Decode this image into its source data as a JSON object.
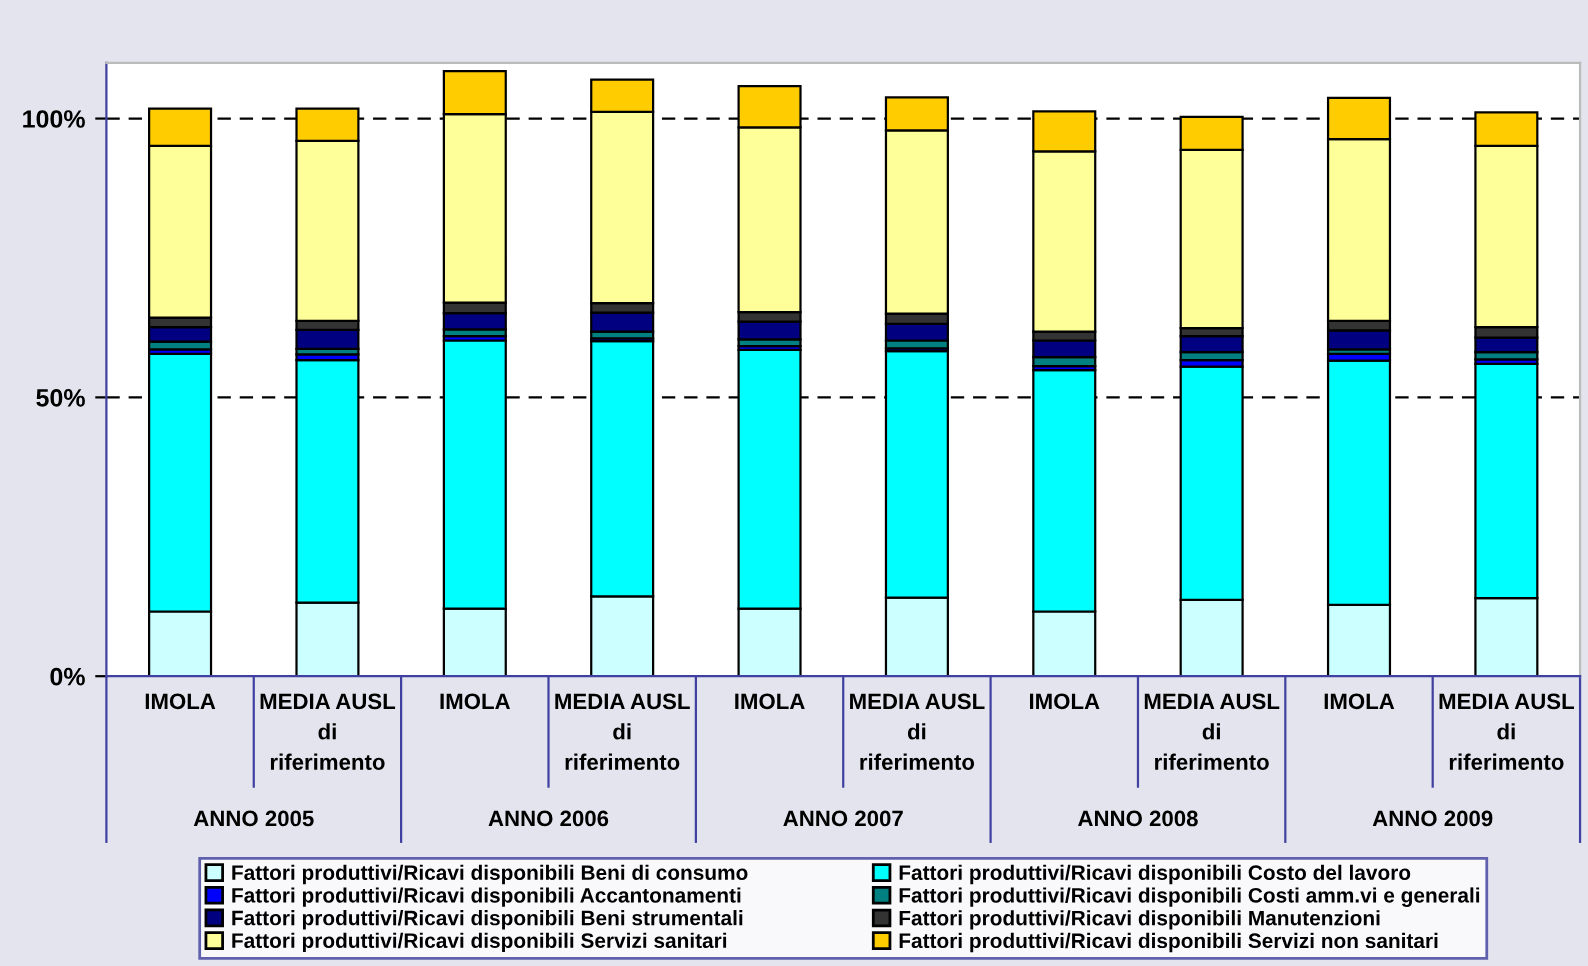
{
  "chart_data": {
    "type": "bar",
    "stacked": true,
    "categories": [
      "IMOLA",
      "MEDIA AUSL\ndi\nriferimento",
      "IMOLA",
      "MEDIA AUSL\ndi\nriferimento",
      "IMOLA",
      "MEDIA AUSL\ndi\nriferimento",
      "IMOLA",
      "MEDIA AUSL\ndi\nriferimento",
      "IMOLA",
      "MEDIA AUSL\ndi\nriferimento"
    ],
    "annotations": [
      "ANNO 2005",
      "ANNO 2006",
      "ANNO 2007",
      "ANNO 2008",
      "ANNO 2009"
    ],
    "series": [
      {
        "name": "Fattori produttivi/Ricavi disponibili Beni di consumo",
        "color": "#ccffff",
        "values": [
          11.6,
          13.2,
          12.1,
          14.3,
          12.1,
          14.1,
          11.6,
          13.7,
          12.8,
          14.0
        ]
      },
      {
        "name": "Fattori produttivi/Ricavi disponibili Costo del lavoro",
        "color": "#00ffff",
        "values": [
          46.2,
          43.5,
          48.1,
          45.8,
          46.4,
          44.2,
          43.3,
          41.8,
          43.8,
          42.0
        ]
      },
      {
        "name": "Fattori produttivi/Ricavi disponibili Accantonamenti",
        "color": "#0000ff",
        "values": [
          0.8,
          1.0,
          0.8,
          0.5,
          0.7,
          0.5,
          0.7,
          1.2,
          1.2,
          0.8
        ]
      },
      {
        "name": "Fattori produttivi/Ricavi disponibili Costi amm.vi e generali",
        "color": "#008080",
        "values": [
          1.4,
          1.0,
          1.2,
          1.2,
          1.2,
          1.4,
          1.6,
          1.4,
          0.8,
          1.3
        ]
      },
      {
        "name": "Fattori produttivi/Ricavi disponibili Beni strumentali",
        "color": "#000080",
        "values": [
          2.6,
          3.4,
          2.9,
          3.4,
          3.2,
          3.0,
          3.0,
          2.9,
          3.4,
          2.6
        ]
      },
      {
        "name": "Fattori produttivi/Ricavi disponibili Manutenzioni",
        "color": "#333333",
        "values": [
          1.7,
          1.6,
          1.9,
          1.7,
          1.7,
          1.8,
          1.6,
          1.4,
          1.7,
          1.9
        ]
      },
      {
        "name": "Fattori produttivi/Ricavi disponibili Servizi sanitari",
        "color": "#ffff99",
        "values": [
          30.8,
          32.3,
          33.8,
          34.3,
          33.1,
          32.9,
          32.3,
          32.0,
          32.6,
          32.5
        ]
      },
      {
        "name": "Fattori produttivi/Ricavi disponibili Servizi non sanitari",
        "color": "#ffcc00",
        "values": [
          6.7,
          5.8,
          7.7,
          5.8,
          7.4,
          5.9,
          7.2,
          5.9,
          7.4,
          6.0
        ]
      }
    ],
    "ylim": [
      0,
      110
    ],
    "yticks": [
      {
        "value": 0,
        "label": "0%"
      },
      {
        "value": 50,
        "label": "50%"
      },
      {
        "value": 100,
        "label": "100%"
      }
    ],
    "grid": "y",
    "legend": "bottom"
  }
}
